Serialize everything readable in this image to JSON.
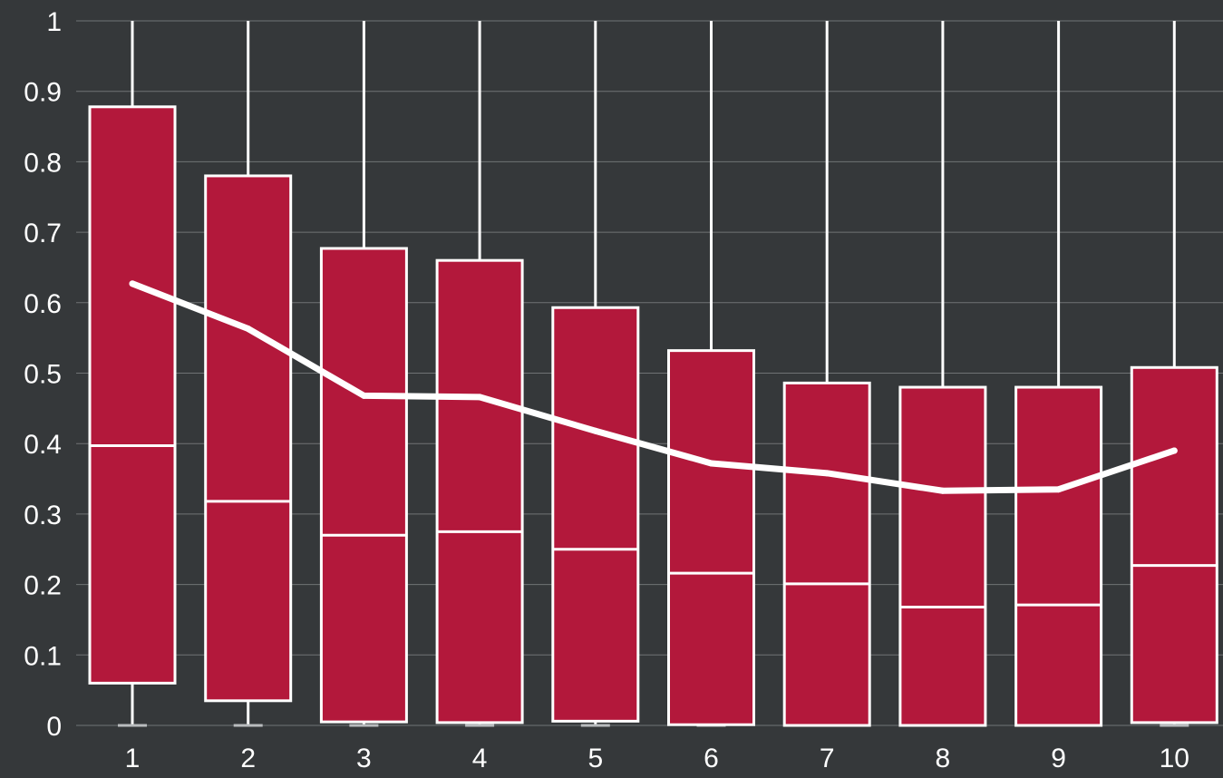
{
  "colors": {
    "background": "#35383a",
    "box_fill": "#b3183b",
    "stroke": "#ffffff",
    "grid": "#707375"
  },
  "chart_data": {
    "type": "box",
    "title": "",
    "xlabel": "",
    "ylabel": "",
    "ylim": [
      0,
      1
    ],
    "grid": true,
    "x_ticks": [
      "1",
      "2",
      "3",
      "4",
      "5",
      "6",
      "7",
      "8",
      "9",
      "10"
    ],
    "y_ticks": [
      "0",
      "0.1",
      "0.2",
      "0.3",
      "0.4",
      "0.5",
      "0.6",
      "0.7",
      "0.8",
      "0.9",
      "1"
    ],
    "boxes": [
      {
        "category": "1",
        "min": 0,
        "q1": 0.06,
        "median": 0.397,
        "q3": 0.878,
        "max": 1,
        "mean": 0.627
      },
      {
        "category": "2",
        "min": 0,
        "q1": 0.035,
        "median": 0.318,
        "q3": 0.78,
        "max": 1,
        "mean": 0.563
      },
      {
        "category": "3",
        "min": 0,
        "q1": 0.005,
        "median": 0.27,
        "q3": 0.677,
        "max": 1,
        "mean": 0.468
      },
      {
        "category": "4",
        "min": 0,
        "q1": 0.004,
        "median": 0.275,
        "q3": 0.66,
        "max": 1,
        "mean": 0.466
      },
      {
        "category": "5",
        "min": 0,
        "q1": 0.006,
        "median": 0.25,
        "q3": 0.593,
        "max": 1,
        "mean": 0.418
      },
      {
        "category": "6",
        "min": 0,
        "q1": 0.001,
        "median": 0.216,
        "q3": 0.532,
        "max": 1,
        "mean": 0.372
      },
      {
        "category": "7",
        "min": 0,
        "q1": 0.0,
        "median": 0.201,
        "q3": 0.486,
        "max": 1,
        "mean": 0.358
      },
      {
        "category": "8",
        "min": 0,
        "q1": 0.0,
        "median": 0.168,
        "q3": 0.48,
        "max": 1,
        "mean": 0.333
      },
      {
        "category": "9",
        "min": 0,
        "q1": 0.0,
        "median": 0.171,
        "q3": 0.48,
        "max": 1,
        "mean": 0.335
      },
      {
        "category": "10",
        "min": 0,
        "q1": 0.004,
        "median": 0.227,
        "q3": 0.508,
        "max": 1,
        "mean": 0.39
      }
    ]
  }
}
